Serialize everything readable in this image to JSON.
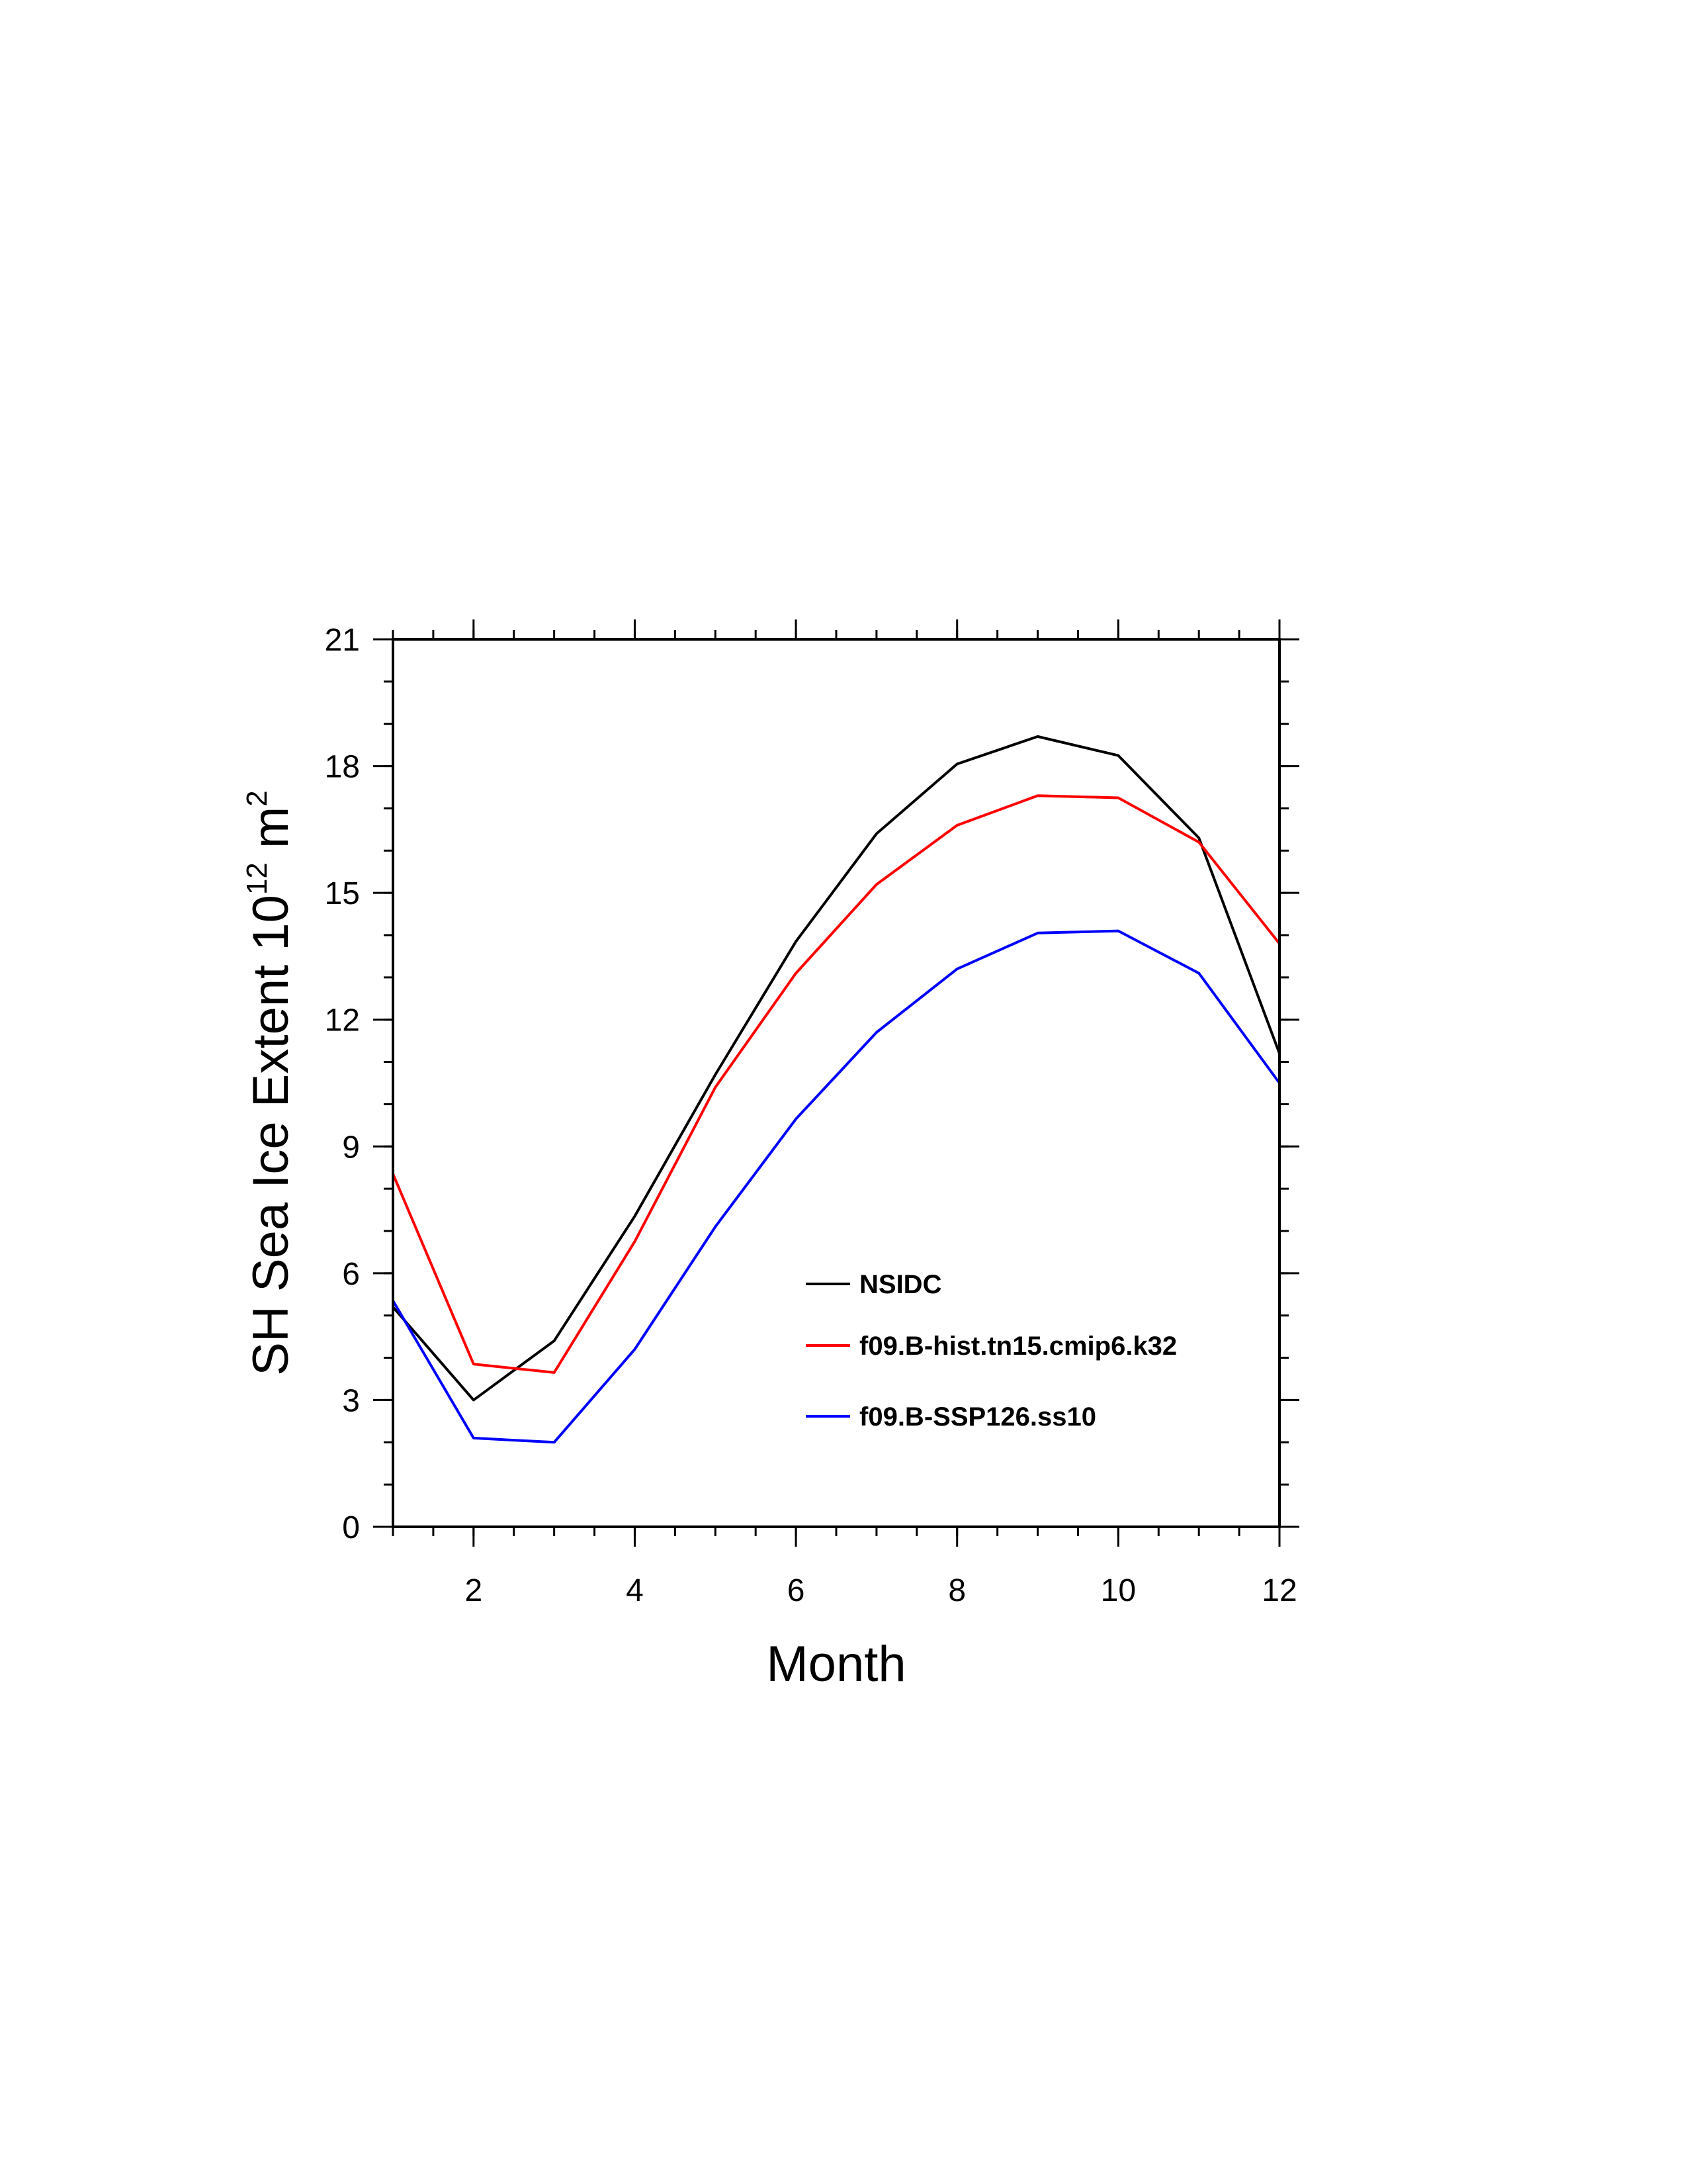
{
  "chart_data": {
    "type": "line",
    "title": "",
    "xlabel": "Month",
    "ylabel": {
      "main": "SH Sea Ice Extent 10",
      "exp1": "12",
      "unit": " m",
      "exp2": "2"
    },
    "xlim": [
      1,
      12
    ],
    "ylim": [
      0,
      21
    ],
    "xticks": [
      2,
      4,
      6,
      8,
      10,
      12
    ],
    "xminor_step": 0.5,
    "yticks": [
      0,
      3,
      6,
      9,
      12,
      15,
      18,
      21
    ],
    "yminor_step": 1,
    "grid": false,
    "legend_position": "lower-right inside",
    "x": [
      1,
      2,
      3,
      4,
      5,
      6,
      7,
      8,
      9,
      10,
      11,
      12
    ],
    "series": [
      {
        "name": "NSIDC",
        "color": "#000000",
        "values": [
          5.2,
          3.0,
          4.4,
          7.35,
          10.7,
          13.85,
          16.4,
          18.05,
          18.7,
          18.25,
          16.3,
          11.2
        ]
      },
      {
        "name": "f09.B-hist.tn15.cmip6.k32",
        "color": "#ff0000",
        "values": [
          8.35,
          3.85,
          3.65,
          6.75,
          10.4,
          13.1,
          15.2,
          16.6,
          17.3,
          17.25,
          16.2,
          13.8
        ]
      },
      {
        "name": "f09.B-SSP126.ss10",
        "color": "#0000ff",
        "values": [
          5.35,
          2.1,
          2.0,
          4.2,
          7.1,
          9.65,
          11.7,
          13.2,
          14.05,
          14.1,
          13.1,
          10.5
        ]
      }
    ]
  }
}
